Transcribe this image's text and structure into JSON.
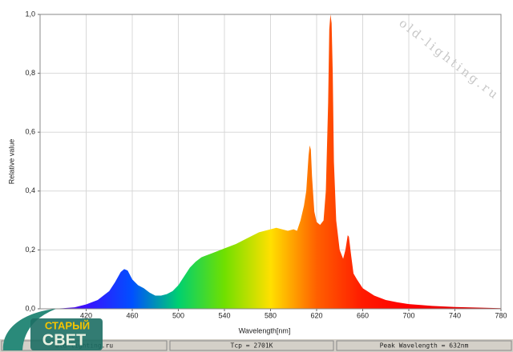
{
  "chart_data": {
    "type": "area",
    "x_label": "Wavelength[nm]",
    "y_label": "Relative value",
    "x": [
      380,
      390,
      400,
      410,
      420,
      430,
      440,
      445,
      450,
      453,
      456,
      460,
      465,
      470,
      475,
      480,
      485,
      490,
      495,
      500,
      505,
      510,
      515,
      520,
      530,
      540,
      550,
      560,
      570,
      580,
      585,
      590,
      595,
      600,
      603,
      606,
      609,
      611,
      613,
      614,
      615,
      616,
      618,
      620,
      623,
      626,
      628,
      630,
      631,
      632,
      633,
      634,
      635,
      637,
      640,
      643,
      645,
      647,
      648,
      650,
      652,
      655,
      660,
      670,
      680,
      690,
      700,
      720,
      740,
      760,
      780
    ],
    "values": [
      0,
      0,
      0.002,
      0.005,
      0.015,
      0.03,
      0.06,
      0.09,
      0.125,
      0.135,
      0.13,
      0.1,
      0.08,
      0.07,
      0.055,
      0.045,
      0.045,
      0.05,
      0.06,
      0.08,
      0.11,
      0.14,
      0.16,
      0.175,
      0.19,
      0.205,
      0.22,
      0.24,
      0.26,
      0.27,
      0.275,
      0.27,
      0.265,
      0.27,
      0.265,
      0.3,
      0.35,
      0.4,
      0.52,
      0.555,
      0.54,
      0.45,
      0.33,
      0.295,
      0.285,
      0.3,
      0.4,
      0.7,
      0.95,
      1.0,
      0.97,
      0.8,
      0.5,
      0.3,
      0.2,
      0.17,
      0.2,
      0.25,
      0.245,
      0.18,
      0.12,
      0.1,
      0.07,
      0.045,
      0.03,
      0.022,
      0.016,
      0.01,
      0.006,
      0.004,
      0.002
    ],
    "fill_colors": [
      "#7a00b0",
      "#3a10ff",
      "#0050ff",
      "#00d070",
      "#70e000",
      "#ffe000",
      "#ff6000",
      "#ff1a00",
      "#ff0000",
      "#e80000",
      "#c80000"
    ],
    "xlim": [
      380,
      780
    ],
    "ylim": [
      0,
      1
    ],
    "xticks": [
      420,
      460,
      500,
      540,
      580,
      620,
      660,
      700,
      740,
      780
    ],
    "yticks": [
      {
        "value": 0,
        "label": "0,0"
      },
      {
        "value": 0.2,
        "label": "0,2"
      },
      {
        "value": 0.4,
        "label": "0,4"
      },
      {
        "value": 0.6,
        "label": "0,6"
      },
      {
        "value": 0.8,
        "label": "0,8"
      },
      {
        "value": 1,
        "label": "1,0"
      }
    ],
    "grid": true
  },
  "watermark": "old-lighting.ru",
  "status_bar": [
    "old-lighting.ru",
    "Tcp = 2701K",
    "Peak Wavelength = 632nm"
  ],
  "logo": [
    "СТАРЫЙ",
    "СВЕТ"
  ]
}
